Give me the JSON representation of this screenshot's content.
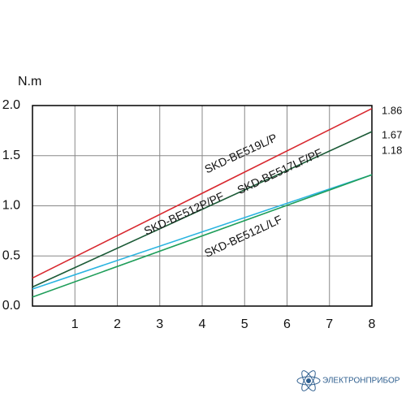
{
  "chart_data": {
    "type": "line",
    "y_label": "N.m",
    "x": [
      0,
      8
    ],
    "series": [
      {
        "name": "SKD-BE519L/P",
        "color": "#d8282f",
        "values": [
          0.28,
          1.97
        ]
      },
      {
        "name": "SKD-BE517LF/PF",
        "color": "#1b5a36",
        "values": [
          0.19,
          1.74
        ]
      },
      {
        "name": "SKD-BE512P/PF",
        "color": "#2ab4e0",
        "values": [
          0.17,
          1.31
        ]
      },
      {
        "name": "SKD-BE512L/LF",
        "color": "#1f9e5a",
        "values": [
          0.09,
          1.31
        ]
      }
    ],
    "annotations": [
      "1.86",
      "1.67",
      "1.18"
    ],
    "xlim": [
      0,
      8
    ],
    "xticks": [
      1,
      2,
      3,
      4,
      5,
      6,
      7,
      8
    ],
    "ylim": [
      0,
      2
    ],
    "yticks": [
      {
        "value": 0,
        "label": "0.0"
      },
      0.5,
      {
        "value": 1,
        "label": "1.0"
      },
      1.5,
      {
        "value": 2,
        "label": "2.0"
      }
    ],
    "grid": true
  },
  "logo": "ЭЛЕКТРОНПРИБОР"
}
